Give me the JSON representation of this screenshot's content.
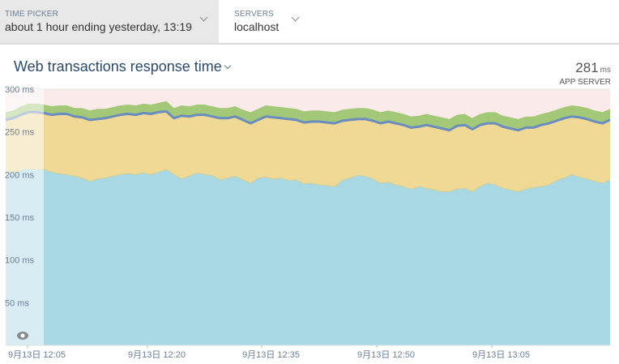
{
  "time_picker": {
    "label": "TIME PICKER",
    "value": "about 1 hour ending yesterday, 13:19"
  },
  "servers": {
    "label": "SERVERS",
    "value": "localhost"
  },
  "chart_header": {
    "title": "Web transactions response time",
    "value": "281",
    "unit": "ms",
    "sublabel": "APP SERVER"
  },
  "colors": {
    "blue": "#a8d8e4",
    "yellow": "#f0d994",
    "green": "#a3c978",
    "line": "#6b8cbf",
    "pink": "#fbeaea"
  },
  "chart_data": {
    "type": "area",
    "title": "Web transactions response time",
    "xlabel": "",
    "ylabel": "",
    "ylim": [
      0,
      300
    ],
    "y_ticks": [
      "300 ms",
      "250 ms",
      "200 ms",
      "150 ms",
      "100 ms",
      "50 ms"
    ],
    "x_ticks": [
      "9月13日 12:05",
      "9月13日 12:20",
      "9月13日 12:35",
      "9月13日 12:50",
      "9月13日 13:05"
    ],
    "x": [
      0,
      1,
      2,
      3,
      4,
      5,
      6,
      7,
      8,
      9,
      10,
      11,
      12,
      13,
      14,
      15,
      16,
      17,
      18,
      19,
      20,
      21,
      22,
      23,
      24,
      25,
      26,
      27,
      28,
      29,
      30,
      31,
      32,
      33,
      34,
      35,
      36,
      37,
      38,
      39,
      40,
      41,
      42,
      43,
      44,
      45,
      46,
      47,
      48,
      49,
      50,
      51,
      52,
      53,
      54,
      55,
      56,
      57,
      58,
      59,
      60,
      61,
      62,
      63,
      64,
      65,
      66,
      67,
      68,
      69,
      70,
      71,
      72,
      73,
      74,
      75,
      76,
      77,
      78,
      79
    ],
    "series": [
      {
        "name": "blue",
        "values": [
          201,
          203,
          205,
          207,
          206,
          206,
          203,
          201,
          200,
          198,
          196,
          192,
          195,
          196,
          198,
          200,
          201,
          200,
          202,
          200,
          203,
          206,
          200,
          195,
          198,
          202,
          200,
          199,
          194,
          196,
          198,
          194,
          190,
          196,
          197,
          195,
          196,
          193,
          194,
          189,
          190,
          188,
          187,
          186,
          193,
          196,
          199,
          198,
          195,
          190,
          191,
          188,
          186,
          183,
          186,
          184,
          182,
          180,
          180,
          183,
          184,
          180,
          186,
          190,
          188,
          184,
          182,
          180,
          183,
          185,
          186,
          188,
          193,
          196,
          200,
          197,
          195,
          192,
          190,
          194
        ]
      },
      {
        "name": "yellow",
        "values": [
          63,
          63,
          65,
          66,
          67,
          66,
          67,
          70,
          71,
          70,
          71,
          72,
          70,
          70,
          70,
          70,
          70,
          70,
          70,
          71,
          70,
          68,
          66,
          74,
          70,
          68,
          70,
          69,
          72,
          70,
          70,
          70,
          70,
          68,
          71,
          72,
          70,
          72,
          70,
          72,
          72,
          74,
          74,
          74,
          70,
          68,
          66,
          67,
          68,
          70,
          71,
          72,
          72,
          72,
          70,
          74,
          74,
          74,
          72,
          74,
          74,
          73,
          72,
          70,
          72,
          72,
          72,
          72,
          72,
          70,
          72,
          72,
          70,
          70,
          68,
          70,
          70,
          70,
          70,
          70
        ]
      },
      {
        "name": "green",
        "values": [
          9,
          9,
          10,
          10,
          10,
          10,
          10,
          10,
          10,
          10,
          11,
          11,
          12,
          11,
          11,
          11,
          11,
          11,
          11,
          11,
          11,
          12,
          12,
          12,
          12,
          12,
          12,
          12,
          12,
          12,
          12,
          12,
          13,
          13,
          13,
          13,
          13,
          13,
          13,
          13,
          13,
          13,
          13,
          13,
          13,
          13,
          13,
          13,
          13,
          13,
          13,
          13,
          13,
          13,
          13,
          13,
          13,
          13,
          13,
          13,
          13,
          13,
          13,
          13,
          13,
          13,
          13,
          13,
          13,
          13,
          13,
          13,
          13,
          13,
          13,
          13,
          13,
          13,
          13,
          13
        ]
      }
    ]
  }
}
